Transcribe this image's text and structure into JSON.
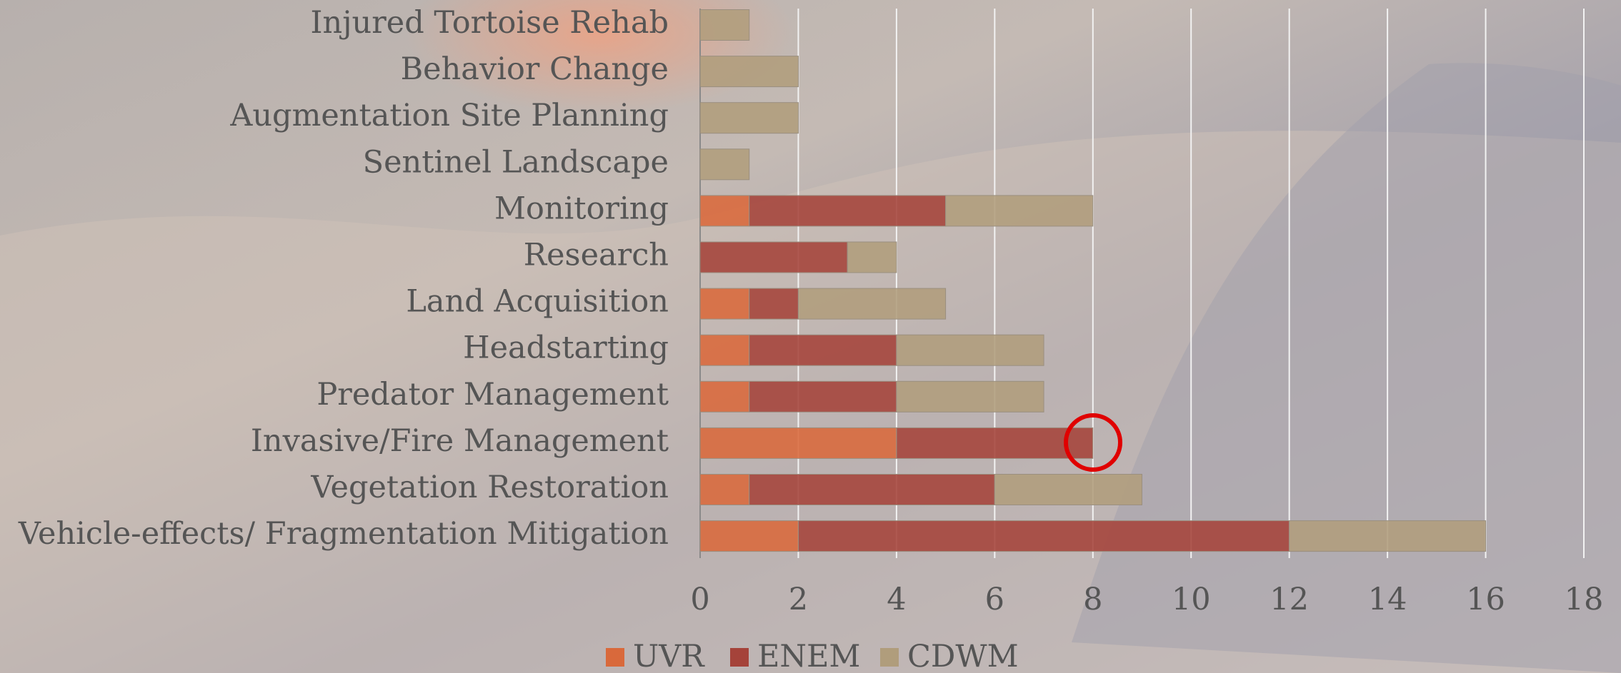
{
  "chart_data": {
    "type": "stacked-bar-horizontal",
    "categories": [
      "Injured Tortoise Rehab",
      "Behavior Change",
      "Augmentation Site Planning",
      "Sentinel Landscape",
      "Monitoring",
      "Research",
      "Land Acquisition",
      "Headstarting",
      "Predator Management",
      "Invasive/Fire Management",
      "Vegetation Restoration",
      "Vehicle-effects/ Fragmentation Mitigation"
    ],
    "series": [
      {
        "name": "UVR",
        "color": "#d9693b",
        "values": [
          0,
          0,
          0,
          0,
          1,
          0,
          1,
          1,
          1,
          4,
          1,
          2
        ]
      },
      {
        "name": "ENEM",
        "color": "#a5433a",
        "values": [
          0,
          0,
          0,
          0,
          4,
          3,
          1,
          3,
          3,
          4,
          5,
          10
        ]
      },
      {
        "name": "CDWM",
        "color": "#b09d7c",
        "values": [
          1,
          2,
          2,
          1,
          3,
          1,
          3,
          3,
          3,
          0,
          3,
          4
        ]
      }
    ],
    "xlim": [
      0,
      18
    ],
    "xticks": [
      0,
      2,
      4,
      6,
      8,
      10,
      12,
      14,
      16,
      18
    ],
    "grid": true,
    "legend": "bottom"
  }
}
